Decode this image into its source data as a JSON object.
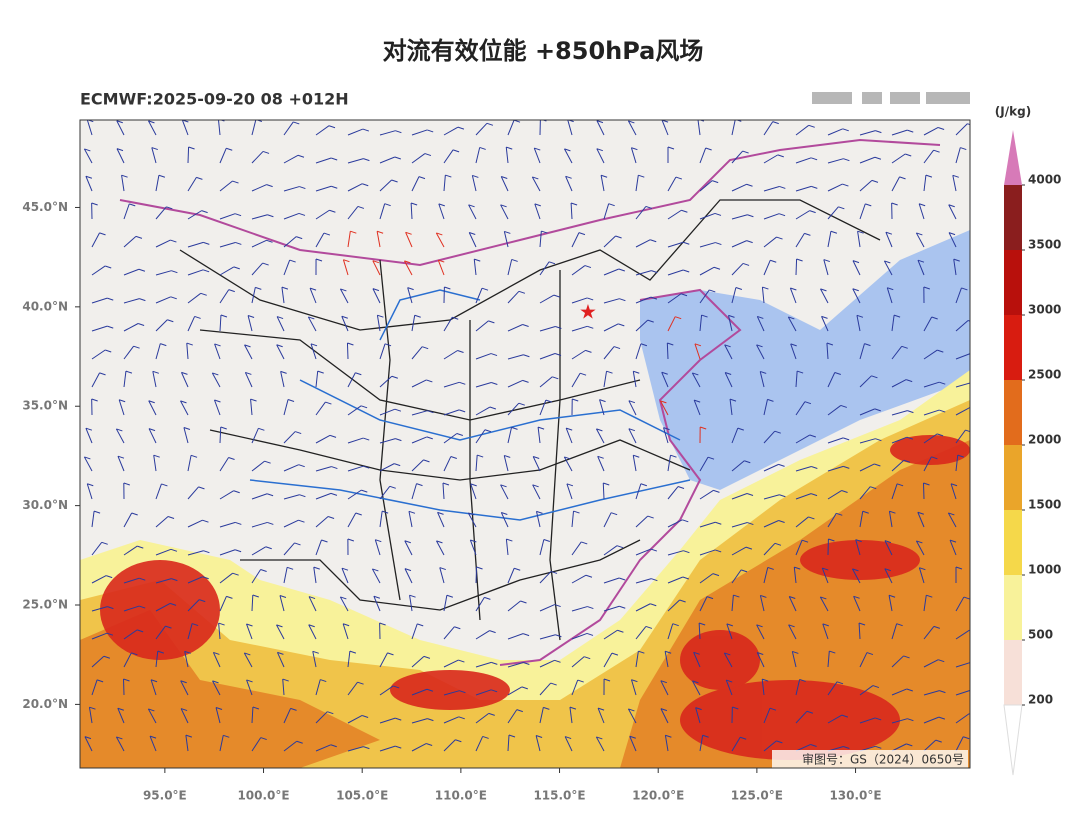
{
  "title": "对流有效位能 +850hPa风场",
  "subtitle": "ECMWF:2025-09-20 08 +012H",
  "map": {
    "lonlim": [
      90.7,
      135.8
    ],
    "latlim": [
      16.8,
      49.4
    ],
    "lon_ticks": [
      {
        "value": 95,
        "label": "95.0°E"
      },
      {
        "value": 100,
        "label": "100.0°E"
      },
      {
        "value": 105,
        "label": "105.0°E"
      },
      {
        "value": 110,
        "label": "110.0°E"
      },
      {
        "value": 115,
        "label": "115.0°E"
      },
      {
        "value": 120,
        "label": "120.0°E"
      },
      {
        "value": 125,
        "label": "125.0°E"
      },
      {
        "value": 130,
        "label": "130.0°E"
      }
    ],
    "lat_ticks": [
      {
        "value": 20,
        "label": "20.0°N"
      },
      {
        "value": 25,
        "label": "25.0°N"
      },
      {
        "value": 30,
        "label": "30.0°N"
      },
      {
        "value": 35,
        "label": "35.0°N"
      },
      {
        "value": 40,
        "label": "40.0°N"
      },
      {
        "value": 45,
        "label": "45.0°N"
      }
    ],
    "review_number": "审图号：GS（2024）0650号"
  },
  "colorbar": {
    "unit": "(J/kg)",
    "levels": [
      200,
      500,
      1000,
      1500,
      2000,
      2500,
      3000,
      3500,
      4000
    ],
    "colors": [
      "#f7e0d8",
      "#f8f29a",
      "#f5d84a",
      "#eaa52a",
      "#e26c1c",
      "#d81c10",
      "#b8100c",
      "#8a1e1e"
    ],
    "under_color": "#ffffff",
    "over_color": "#d77ab8"
  }
}
